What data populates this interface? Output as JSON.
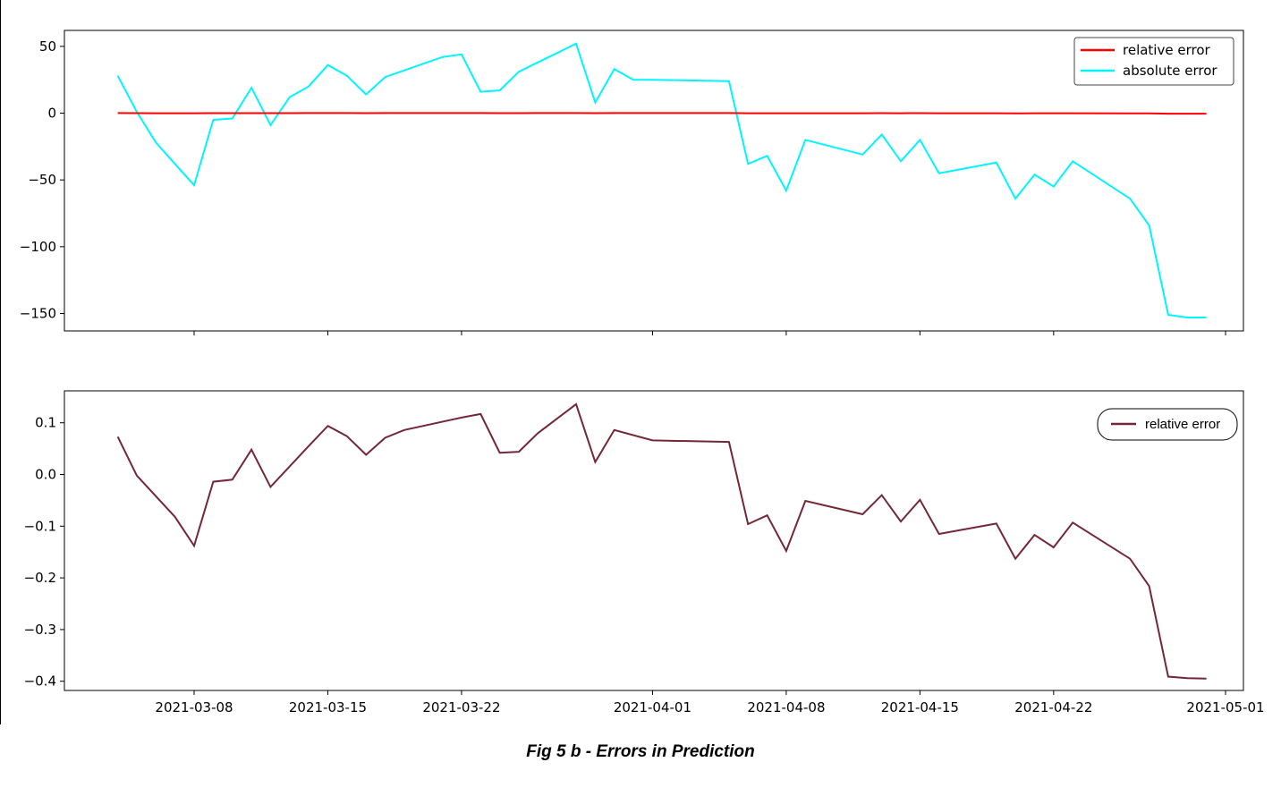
{
  "caption": "Fig 5 b - Errors in Prediction",
  "chart_data": [
    {
      "type": "line",
      "x_ticks": [
        "2021-03-08",
        "2021-03-15",
        "2021-03-22",
        "2021-04-01",
        "2021-04-08",
        "2021-04-15",
        "2021-04-22",
        "2021-05-01"
      ],
      "y_ticks": [
        "50",
        "0",
        "−50",
        "−100",
        "−150"
      ],
      "ylim": [
        -155,
        62
      ],
      "legend": {
        "location": "upper right"
      },
      "x": [
        "2021-03-04",
        "2021-03-05",
        "2021-03-06",
        "2021-03-07",
        "2021-03-08",
        "2021-03-09",
        "2021-03-10",
        "2021-03-11",
        "2021-03-12",
        "2021-03-13",
        "2021-03-14",
        "2021-03-15",
        "2021-03-16",
        "2021-03-17",
        "2021-03-18",
        "2021-03-19",
        "2021-03-20",
        "2021-03-21",
        "2021-03-22",
        "2021-03-23",
        "2021-03-24",
        "2021-03-25",
        "2021-03-26",
        "2021-03-27",
        "2021-03-28",
        "2021-03-29",
        "2021-03-30",
        "2021-03-31",
        "2021-04-01",
        "2021-04-05",
        "2021-04-06",
        "2021-04-07",
        "2021-04-08",
        "2021-04-09",
        "2021-04-12",
        "2021-04-13",
        "2021-04-14",
        "2021-04-15",
        "2021-04-16",
        "2021-04-19",
        "2021-04-20",
        "2021-04-21",
        "2021-04-22",
        "2021-04-23",
        "2021-04-26",
        "2021-04-27",
        "2021-04-28",
        "2021-04-29",
        "2021-04-30"
      ],
      "series": [
        {
          "name": "relative error",
          "color": "#ff0000",
          "values": [
            0.1,
            0.0,
            -0.1,
            -0.1,
            -0.1,
            0.0,
            0.0,
            0.0,
            0.0,
            0.0,
            0.1,
            0.1,
            0.1,
            0.0,
            0.1,
            0.1,
            0.1,
            0.1,
            0.1,
            0.1,
            0.0,
            0.0,
            0.1,
            0.1,
            0.1,
            0.0,
            0.1,
            0.1,
            0.1,
            0.1,
            -0.1,
            -0.1,
            -0.1,
            -0.1,
            -0.1,
            0.0,
            -0.1,
            0.0,
            -0.1,
            -0.1,
            -0.2,
            -0.1,
            -0.1,
            -0.1,
            -0.2,
            -0.2,
            -0.4,
            -0.4,
            -0.4
          ]
        },
        {
          "name": "absolute error",
          "color": "#00f5ff",
          "values": [
            28,
            1,
            -22,
            -38,
            -54,
            -5,
            -4,
            19,
            -9,
            12,
            20,
            36,
            28,
            14,
            27,
            32,
            37,
            42,
            44,
            16,
            17,
            31,
            38,
            45,
            52,
            8,
            33,
            25,
            25,
            24,
            -38,
            -32,
            -58,
            -20,
            -31,
            -16,
            -36,
            -20,
            -45,
            -37,
            -64,
            -46,
            -55,
            -36,
            -64,
            -84,
            -151,
            -153,
            -153
          ]
        }
      ]
    },
    {
      "type": "line",
      "x_ticks": [
        "2021-03-08",
        "2021-03-15",
        "2021-03-22",
        "2021-04-01",
        "2021-04-08",
        "2021-04-15",
        "2021-04-22",
        "2021-05-01"
      ],
      "y_ticks": [
        "0.1",
        "0.0",
        "−0.1",
        "−0.2",
        "−0.3",
        "−0.4"
      ],
      "ylim": [
        -0.42,
        0.165
      ],
      "legend": {
        "location": "upper right"
      },
      "x": [
        "2021-03-04",
        "2021-03-05",
        "2021-03-07",
        "2021-03-08",
        "2021-03-09",
        "2021-03-10",
        "2021-03-11",
        "2021-03-12",
        "2021-03-14",
        "2021-03-15",
        "2021-03-16",
        "2021-03-17",
        "2021-03-18",
        "2021-03-19",
        "2021-03-22",
        "2021-03-23",
        "2021-03-24",
        "2021-03-25",
        "2021-03-26",
        "2021-03-28",
        "2021-03-29",
        "2021-03-30",
        "2021-04-01",
        "2021-04-05",
        "2021-04-06",
        "2021-04-07",
        "2021-04-08",
        "2021-04-09",
        "2021-04-12",
        "2021-04-13",
        "2021-04-14",
        "2021-04-15",
        "2021-04-16",
        "2021-04-19",
        "2021-04-20",
        "2021-04-21",
        "2021-04-22",
        "2021-04-23",
        "2021-04-26",
        "2021-04-27",
        "2021-04-28",
        "2021-04-29",
        "2021-04-30"
      ],
      "series": [
        {
          "name": "relative error",
          "color": "#722838",
          "values": [
            0.073,
            -0.002,
            -0.082,
            -0.138,
            -0.014,
            -0.01,
            0.048,
            -0.024,
            0.055,
            0.094,
            0.074,
            0.038,
            0.071,
            0.086,
            0.11,
            0.117,
            0.042,
            0.044,
            0.08,
            0.136,
            0.024,
            0.086,
            0.066,
            0.063,
            -0.096,
            -0.079,
            -0.148,
            -0.051,
            -0.077,
            -0.04,
            -0.091,
            -0.049,
            -0.115,
            -0.095,
            -0.163,
            -0.117,
            -0.141,
            -0.093,
            -0.163,
            -0.216,
            -0.391,
            -0.394,
            -0.395
          ]
        }
      ]
    }
  ]
}
